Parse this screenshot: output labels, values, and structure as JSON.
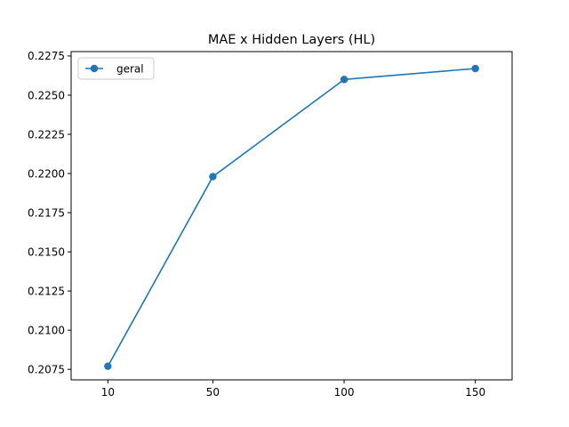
{
  "chart_data": {
    "type": "line",
    "title": "MAE x Hidden Layers (HL)",
    "xlabel": "",
    "ylabel": "",
    "x": [
      10,
      50,
      100,
      150
    ],
    "x_ticks": [
      10,
      50,
      100,
      150
    ],
    "xlim": [
      -4.0,
      164.0
    ],
    "y_ticks": [
      0.2075,
      0.21,
      0.2125,
      0.215,
      0.2175,
      0.22,
      0.2225,
      0.225,
      0.2275
    ],
    "y_tick_labels": [
      "0.2075",
      "0.2100",
      "0.2125",
      "0.2150",
      "0.2175",
      "0.2200",
      "0.2225",
      "0.2250",
      "0.2275"
    ],
    "ylim": [
      0.20683,
      0.22778
    ],
    "grid": false,
    "legend_position": "upper-left",
    "series": [
      {
        "name": "geral",
        "color": "#1f77b4",
        "marker": "circle",
        "values": [
          0.2077,
          0.2198,
          0.226,
          0.2267
        ]
      }
    ]
  }
}
